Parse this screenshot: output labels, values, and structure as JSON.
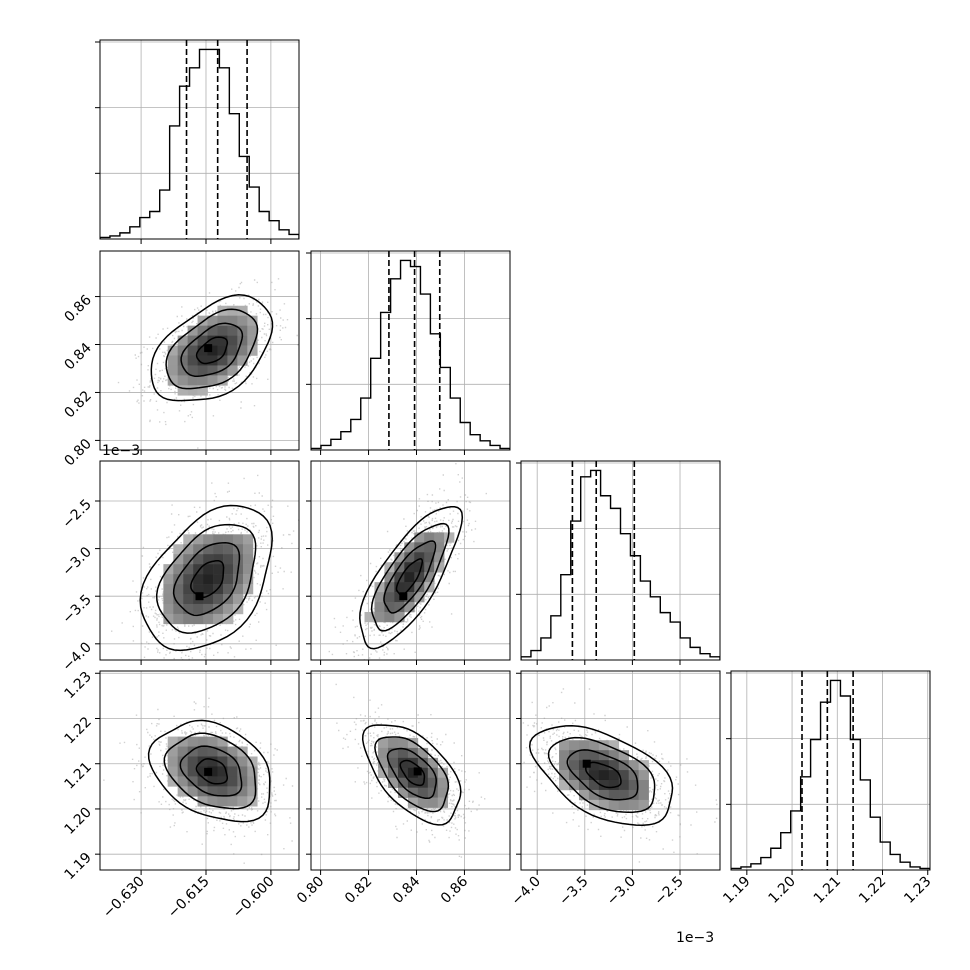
{
  "chart_data": {
    "type": "corner",
    "description_free": true,
    "parameters": [
      {
        "range": [
          -0.6395,
          -0.5935
        ],
        "ticks": [
          -0.63,
          -0.615,
          -0.6
        ],
        "tick_labels": [
          "−0.630",
          "−0.615",
          "−0.600"
        ],
        "exponent_label": "",
        "quantiles": [
          -0.6195,
          -0.6123,
          -0.6055
        ],
        "hist": [
          0.5,
          1,
          2,
          4,
          7,
          9,
          16,
          37,
          50,
          56,
          62,
          62,
          56,
          41,
          27,
          17,
          9,
          6,
          3,
          1.5
        ]
      },
      {
        "range": [
          0.796,
          0.879
        ],
        "ticks": [
          0.8,
          0.82,
          0.84,
          0.86
        ],
        "tick_labels": [
          "0.80",
          "0.82",
          "0.84",
          "0.86"
        ],
        "exponent_label": "",
        "quantiles": [
          0.8285,
          0.8392,
          0.8497
        ],
        "hist": [
          0.5,
          1.5,
          3.5,
          6,
          10,
          17,
          30,
          45,
          56,
          62,
          60,
          51,
          38,
          27,
          17,
          9,
          5,
          3,
          1.5,
          0.5
        ]
      },
      {
        "range": [
          -4.17,
          -2.08
        ],
        "ticks": [
          -4.0,
          -3.5,
          -3.0,
          -2.5
        ],
        "tick_labels": [
          "−4.0",
          "−3.5",
          "−3.0",
          "−2.5"
        ],
        "exponent_label": "1e−3",
        "quantiles": [
          -3.63,
          -3.38,
          -2.98
        ],
        "hist": [
          1,
          3,
          7,
          14,
          27,
          44,
          58,
          60,
          52,
          48,
          40,
          33,
          25,
          20,
          15,
          12,
          7,
          4,
          2,
          1
        ]
      },
      {
        "range": [
          1.1865,
          1.2305
        ],
        "ticks": [
          1.19,
          1.2,
          1.21,
          1.22,
          1.23
        ],
        "tick_labels": [
          "1.19",
          "1.20",
          "1.21",
          "1.22",
          "1.23"
        ],
        "exponent_label": "",
        "quantiles": [
          1.2022,
          1.2078,
          1.2135
        ],
        "hist": [
          0.5,
          1,
          2,
          4,
          7,
          12,
          19,
          30,
          42,
          54,
          61,
          56,
          42,
          29,
          17,
          9,
          5,
          2.5,
          1,
          0.5
        ]
      }
    ],
    "panels": [
      {
        "row": 1,
        "col": 0,
        "mean": [
          -0.6135,
          0.8375
        ],
        "sd": [
          0.007,
          0.011
        ],
        "rho": 0.45,
        "peak": [
          -0.6145,
          0.8385
        ]
      },
      {
        "row": 2,
        "col": 0,
        "mean": [
          -0.6145,
          -3.32
        ],
        "sd": [
          0.0075,
          0.38
        ],
        "rho": 0.4,
        "peak": [
          -0.6165,
          -3.5
        ]
      },
      {
        "row": 2,
        "col": 1,
        "mean": [
          0.837,
          -3.3
        ],
        "sd": [
          0.0105,
          0.37
        ],
        "rho": 0.75,
        "peak": [
          0.8345,
          -3.5
        ]
      },
      {
        "row": 3,
        "col": 0,
        "mean": [
          -0.6135,
          1.2083
        ],
        "sd": [
          0.007,
          0.0055
        ],
        "rho": -0.3,
        "peak": [
          -0.6145,
          1.2082
        ]
      },
      {
        "row": 3,
        "col": 1,
        "mean": [
          0.8385,
          1.208
        ],
        "sd": [
          0.01,
          0.0055
        ],
        "rho": -0.55,
        "peak": [
          0.8405,
          1.2083
        ]
      },
      {
        "row": 3,
        "col": 2,
        "mean": [
          -3.3,
          1.2075
        ],
        "sd": [
          0.37,
          0.0055
        ],
        "rho": -0.5,
        "peak": [
          -3.48,
          1.21
        ]
      }
    ],
    "colors": {
      "line": "#000000",
      "grid": "#b0b0b0",
      "scatter": "#9a9a9a"
    },
    "grid": true
  }
}
